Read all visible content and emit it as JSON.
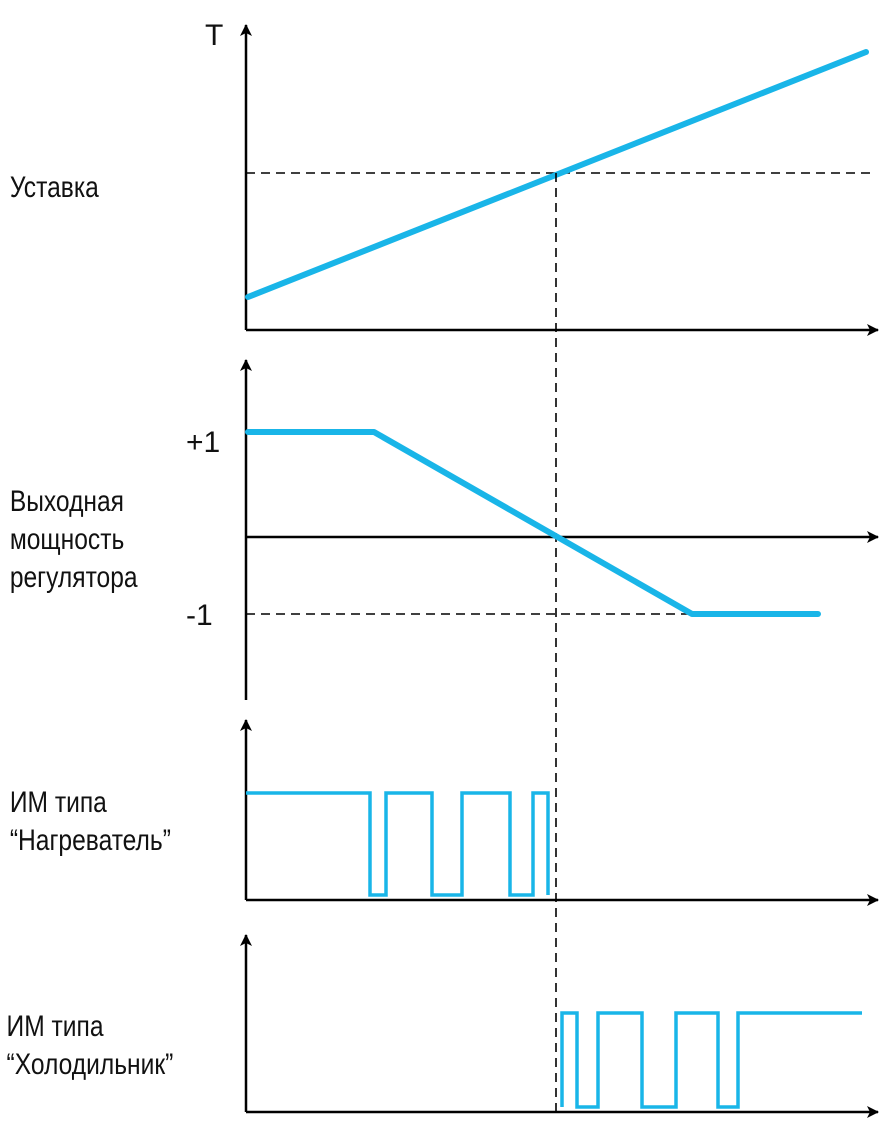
{
  "colors": {
    "signal": "#19b5e8",
    "axis": "#000000"
  },
  "panel1": {
    "axis_label": "T",
    "label": "Уставка",
    "chart_data": {
      "type": "line",
      "series": [
        {
          "x": [
            0,
            1
          ],
          "y": [
            0.0,
            1.0
          ]
        }
      ],
      "reference_lines": [
        {
          "axis": "y",
          "value": 0.5,
          "style": "dashed"
        },
        {
          "axis": "x",
          "value": 0.5,
          "style": "dashed"
        }
      ]
    }
  },
  "panel2": {
    "label_lines": [
      "Выходная",
      "мощность",
      "регулятора"
    ],
    "ticks": {
      "plus_one": "+1",
      "minus_one": "-1"
    },
    "chart_data": {
      "type": "line",
      "series": [
        {
          "x": [
            0,
            0.2,
            0.7,
            0.9
          ],
          "y": [
            1,
            1,
            -1,
            -1
          ]
        }
      ],
      "ylim": [
        -1,
        1
      ]
    }
  },
  "panel3": {
    "label_lines": [
      "ИМ типа",
      "“Нагреватель”"
    ],
    "chart_data": {
      "type": "line",
      "levels": [
        "high",
        "low"
      ],
      "series": [
        {
          "x": [
            0,
            0.2,
            0.23,
            0.3,
            0.33,
            0.4,
            0.45,
            0.5
          ],
          "y": [
            1,
            0,
            1,
            0,
            1,
            0,
            1,
            0
          ]
        }
      ]
    }
  },
  "panel4": {
    "label_lines": [
      "ИМ типа",
      "“Холодильник”"
    ],
    "chart_data": {
      "type": "line",
      "levels": [
        "high",
        "low"
      ],
      "series": [
        {
          "x": [
            0.5,
            0.55,
            0.6,
            0.65,
            0.72,
            0.78,
            0.8
          ],
          "y": [
            1,
            0,
            1,
            0,
            1,
            0,
            1
          ]
        }
      ]
    }
  }
}
